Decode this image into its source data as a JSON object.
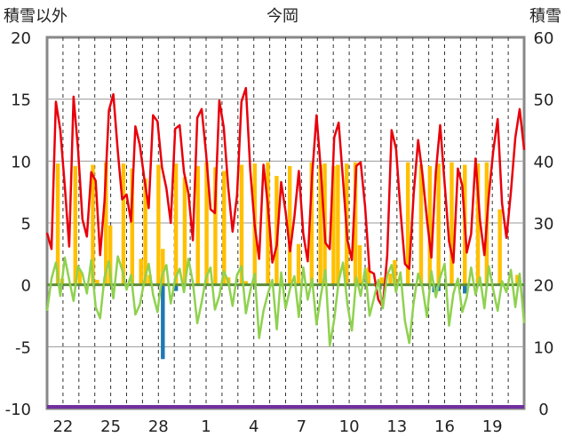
{
  "chart_data": {
    "type": "line",
    "title": "今岡",
    "left_axis_label": "積雪以外",
    "right_axis_label": "積雪",
    "y_left_lim": [
      -10,
      20
    ],
    "y_left_ticks": [
      "20",
      "15",
      "10",
      "5",
      "0",
      "-5",
      "-10"
    ],
    "y_right_lim": [
      0,
      60
    ],
    "y_right_ticks": [
      "60",
      "50",
      "40",
      "30",
      "20",
      "10",
      "0"
    ],
    "x_tick_labels": [
      "22",
      "25",
      "28",
      "1",
      "4",
      "7",
      "10",
      "13",
      "16",
      "19"
    ],
    "day_count": 30,
    "colors": {
      "temp_max": "#e8000b",
      "temp_min": "#8fd14f",
      "precipitation": "#ffc000",
      "negative_bars": "#1f77b4",
      "snow_depth": "#7030a0",
      "zero_line": "#5b8c3a"
    },
    "series": [
      {
        "name": "",
        "kind": "line",
        "color": "#e8000b",
        "values": [
          4.2,
          2.9,
          14.8,
          12.5,
          8.0,
          3.1,
          15.2,
          11.0,
          5.3,
          3.9,
          9.1,
          8.4,
          2.4,
          6.7,
          14.1,
          15.4,
          10.8,
          6.9,
          7.3,
          5.1,
          12.8,
          11.3,
          8.6,
          6.2,
          13.7,
          13.2,
          9.5,
          7.8,
          5.0,
          12.6,
          12.9,
          9.1,
          7.4,
          3.6,
          13.5,
          14.2,
          10.6,
          6.1,
          5.8,
          14.9,
          12.7,
          7.9,
          4.3,
          7.2,
          14.8,
          15.9,
          9.3,
          4.8,
          2.1,
          9.7,
          6.4,
          1.8,
          3.2,
          8.3,
          5.9,
          2.7,
          5.5,
          9.2,
          4.1,
          1.9,
          8.8,
          13.7,
          9.1,
          3.4,
          2.9,
          11.9,
          13.1,
          8.5,
          3.6,
          2.0,
          9.6,
          9.9,
          6.3,
          1.1,
          0.9,
          -1.2,
          -1.8,
          2.4,
          12.5,
          11.0,
          6.0,
          1.7,
          1.3,
          7.4,
          11.7,
          8.9,
          5.3,
          2.2,
          9.1,
          12.9,
          8.2,
          3.5,
          1.8,
          9.4,
          8.0,
          2.6,
          4.1,
          10.2,
          5.2,
          2.4,
          7.2,
          10.8,
          13.4,
          6.6,
          3.8,
          7.5,
          11.9,
          14.2,
          10.9
        ]
      },
      {
        "name": "",
        "kind": "line",
        "color": "#8fd14f",
        "values": [
          -2.1,
          0.5,
          1.8,
          -0.9,
          2.2,
          0.4,
          -1.3,
          1.5,
          0.9,
          -0.7,
          2.0,
          -1.8,
          -2.7,
          0.6,
          1.9,
          -1.1,
          2.3,
          1.2,
          -0.4,
          0.8,
          -2.4,
          -1.6,
          0.3,
          1.7,
          -0.8,
          -2.2,
          0.7,
          1.6,
          -1.5,
          0.5,
          1.3,
          -0.6,
          2.1,
          0.2,
          -3.1,
          -1.4,
          0.6,
          1.4,
          -2.0,
          -0.9,
          1.1,
          0.3,
          -1.7,
          0.8,
          1.5,
          -2.3,
          -0.5,
          0.9,
          -4.3,
          -2.1,
          -0.7,
          0.4,
          -3.6,
          1.0,
          -1.9,
          -0.3,
          0.7,
          -2.6,
          1.4,
          -1.2,
          0.5,
          -3.2,
          -0.8,
          1.2,
          -4.9,
          -2.8,
          0.3,
          1.8,
          -1.6,
          -3.7,
          0.6,
          -0.9,
          1.3,
          -2.5,
          -1.1,
          0.4,
          -1.9,
          0.8,
          1.6,
          -0.6,
          1.0,
          -2.9,
          -4.7,
          -1.4,
          0.9,
          -0.2,
          -2.6,
          1.1,
          -1.0,
          0.6,
          1.7,
          -3.3,
          -0.7,
          0.5,
          -2.2,
          -1.0,
          1.4,
          -0.8,
          0.6,
          -1.9,
          1.5,
          -0.4,
          -2.1,
          0.3,
          -0.6,
          1.2,
          -1.8,
          0.9,
          -3.1
        ]
      },
      {
        "name": "",
        "kind": "bar",
        "color": "#ffc000",
        "values": [
          0,
          0,
          9.8,
          0.5,
          0,
          0,
          9.6,
          1.2,
          0,
          0,
          9.7,
          0.4,
          0,
          9.9,
          4.8,
          0,
          0,
          9.8,
          0,
          9.4,
          0,
          2.1,
          8.6,
          0.8,
          0,
          9.7,
          2.9,
          0,
          0,
          9.8,
          0,
          8.7,
          0,
          0,
          9.6,
          0,
          9.9,
          0,
          9.5,
          0,
          9.2,
          0.6,
          0,
          0,
          9.7,
          0.3,
          0,
          9.8,
          0,
          0,
          9.9,
          0,
          8.8,
          0,
          0,
          9.6,
          0,
          3.3,
          0,
          0,
          9.9,
          0,
          9.7,
          9.8,
          0,
          9.6,
          9.7,
          0,
          9.8,
          0,
          9.9,
          3.2,
          0,
          1.4,
          0,
          0,
          0.6,
          0,
          0.9,
          2.0,
          0,
          0,
          9.9,
          0,
          0,
          9.7,
          0,
          9.6,
          0,
          9.8,
          0,
          0,
          9.9,
          0,
          0,
          9.7,
          0,
          0,
          9.8,
          0,
          9.9,
          0,
          0,
          6.1,
          0,
          0,
          0,
          0.8,
          0
        ]
      },
      {
        "name": "",
        "kind": "bar",
        "color": "#1f77b4",
        "values": [
          0,
          0,
          0,
          0,
          0,
          0,
          0,
          0,
          0,
          0,
          0,
          0,
          0,
          0,
          0,
          0,
          0,
          0,
          0,
          0,
          0,
          0,
          0,
          0,
          0,
          0,
          -6.0,
          0,
          0,
          -0.5,
          0,
          0,
          0,
          0,
          0,
          0,
          0,
          0,
          0,
          0,
          0,
          0,
          0,
          0,
          0,
          0,
          0,
          0,
          0,
          0,
          0,
          0,
          0,
          0,
          0,
          0,
          0,
          0,
          0,
          0,
          0,
          0,
          0,
          0,
          0,
          0,
          0,
          0,
          0,
          0,
          0,
          0,
          0,
          0,
          0,
          0,
          0,
          0,
          0,
          0,
          0,
          0,
          0,
          0,
          0,
          0,
          0,
          0,
          -0.6,
          -0.5,
          0,
          0,
          0,
          0,
          0,
          -0.7,
          0,
          0,
          0,
          0,
          0,
          0,
          0,
          0,
          0,
          0,
          0,
          0,
          0
        ]
      },
      {
        "name": "",
        "kind": "line",
        "axis": "right",
        "color": "#7030a0",
        "values": [
          0,
          0
        ]
      }
    ]
  }
}
